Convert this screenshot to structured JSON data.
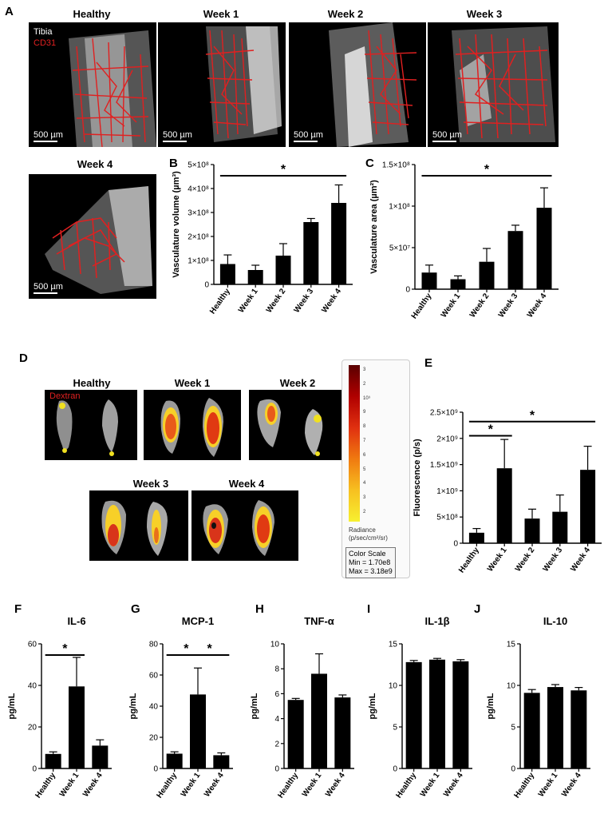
{
  "panel_labels": [
    "A",
    "B",
    "C",
    "D",
    "E",
    "F",
    "G",
    "H",
    "I",
    "J"
  ],
  "panelA": {
    "titles": [
      "Healthy",
      "Week 1",
      "Week 2",
      "Week 3",
      "Week 4"
    ],
    "legend": [
      "Tibia",
      "CD31"
    ],
    "legend_colors": [
      "#ffffff",
      "#e02020"
    ],
    "scale_bar": "500 µm"
  },
  "panelD": {
    "titles": [
      "Healthy",
      "Week 1",
      "Week 2",
      "Week 3",
      "Week 4"
    ],
    "legend": "Dextran",
    "scale_ticks": [
      "3",
      "2",
      "10⁹",
      "9",
      "8",
      "7",
      "6",
      "5",
      "4",
      "3",
      "2"
    ],
    "scale_exp": "9",
    "radiance_label": [
      "Radiance",
      "(p/sec/cm²/sr)"
    ],
    "color_scale": [
      "Color Scale",
      "Min = 1.70e8",
      "Max = 3.18e9"
    ]
  },
  "chart_data": [
    {
      "id": "B",
      "type": "bar",
      "categories": [
        "Healthy",
        "Week 1",
        "Week 2",
        "Week 3",
        "Week 4"
      ],
      "values": [
        0.85,
        0.6,
        1.2,
        2.6,
        3.4
      ],
      "errors": [
        0.38,
        0.2,
        0.5,
        0.15,
        0.75
      ],
      "ylim": [
        0,
        5
      ],
      "yticks": [
        "0",
        "1×10⁸",
        "2×10⁸",
        "3×10⁸",
        "4×10⁸",
        "5×10⁸"
      ],
      "ylabel": "Vasculature volume (µm³)",
      "sig": [
        {
          "from": 0,
          "to": 4,
          "label": "*"
        }
      ]
    },
    {
      "id": "C",
      "type": "bar",
      "categories": [
        "Healthy",
        "Week 1",
        "Week 2",
        "Week 3",
        "Week 4"
      ],
      "values": [
        2.0,
        1.2,
        3.3,
        7.0,
        9.8
      ],
      "errors": [
        0.9,
        0.4,
        1.6,
        0.7,
        2.4
      ],
      "ylim": [
        0,
        15
      ],
      "yticks": [
        "0",
        "5×10⁷",
        "1×10⁸",
        "1.5×10⁸"
      ],
      "ylabel": "Vasculature area (µm²)",
      "sig": [
        {
          "from": 0,
          "to": 4,
          "label": "*"
        }
      ]
    },
    {
      "id": "E",
      "type": "bar",
      "categories": [
        "Healthy",
        "Week 1",
        "Week 2",
        "Week 3",
        "Week 4"
      ],
      "values": [
        0.2,
        1.43,
        0.47,
        0.6,
        1.4
      ],
      "errors": [
        0.08,
        0.55,
        0.18,
        0.32,
        0.45
      ],
      "ylim": [
        0,
        2.5
      ],
      "yticks": [
        "0",
        "5×10⁸",
        "1×10⁹",
        "1.5×10⁹",
        "2×10⁹",
        "2.5×10⁹"
      ],
      "ylabel": "Fluorescence (p/s)",
      "sig": [
        {
          "from": 0,
          "to": 1,
          "label": "*"
        },
        {
          "from": 0,
          "to": 4,
          "label": "*"
        }
      ]
    },
    {
      "id": "F",
      "type": "bar",
      "title": "IL-6",
      "categories": [
        "Healthy",
        "Week 1",
        "Week 4"
      ],
      "values": [
        7,
        39.5,
        11
      ],
      "errors": [
        1,
        14,
        2.8
      ],
      "ylim": [
        0,
        60
      ],
      "yticks": [
        "0",
        "20",
        "40",
        "60"
      ],
      "ylabel": "pg/mL",
      "sig": [
        {
          "from": 0,
          "to": 1,
          "label": "*"
        }
      ]
    },
    {
      "id": "G",
      "type": "bar",
      "title": "MCP-1",
      "categories": [
        "Healthy",
        "Week 1",
        "Week 4"
      ],
      "values": [
        9.5,
        47.5,
        8.5
      ],
      "errors": [
        1.2,
        17,
        1.5
      ],
      "ylim": [
        0,
        80
      ],
      "yticks": [
        "0",
        "20",
        "40",
        "60",
        "80"
      ],
      "ylabel": "pg/mL",
      "sig": [
        {
          "from": 0,
          "to": 1,
          "label": "*"
        },
        {
          "from": 1,
          "to": 2,
          "label": "*"
        }
      ]
    },
    {
      "id": "H",
      "type": "bar",
      "title": "TNF-α",
      "categories": [
        "Healthy",
        "Week 1",
        "Week 4"
      ],
      "values": [
        5.5,
        7.6,
        5.7
      ],
      "errors": [
        0.12,
        1.6,
        0.2
      ],
      "ylim": [
        0,
        10
      ],
      "yticks": [
        "0",
        "2",
        "4",
        "6",
        "8",
        "10"
      ],
      "ylabel": "pg/mL",
      "sig": []
    },
    {
      "id": "I",
      "type": "bar",
      "title": "IL-1β",
      "categories": [
        "Healthy",
        "Week 1",
        "Week 4"
      ],
      "values": [
        12.8,
        13.1,
        12.9
      ],
      "errors": [
        0.2,
        0.15,
        0.2
      ],
      "ylim": [
        0,
        15
      ],
      "yticks": [
        "0",
        "5",
        "10",
        "15"
      ],
      "ylabel": "pg/mL",
      "sig": []
    },
    {
      "id": "J",
      "type": "bar",
      "title": "IL-10",
      "categories": [
        "Healthy",
        "Week 1",
        "Week 4"
      ],
      "values": [
        9.1,
        9.8,
        9.4
      ],
      "errors": [
        0.4,
        0.3,
        0.35
      ],
      "ylim": [
        0,
        15
      ],
      "yticks": [
        "0",
        "5",
        "10",
        "15"
      ],
      "ylabel": "pg/mL",
      "sig": []
    }
  ]
}
